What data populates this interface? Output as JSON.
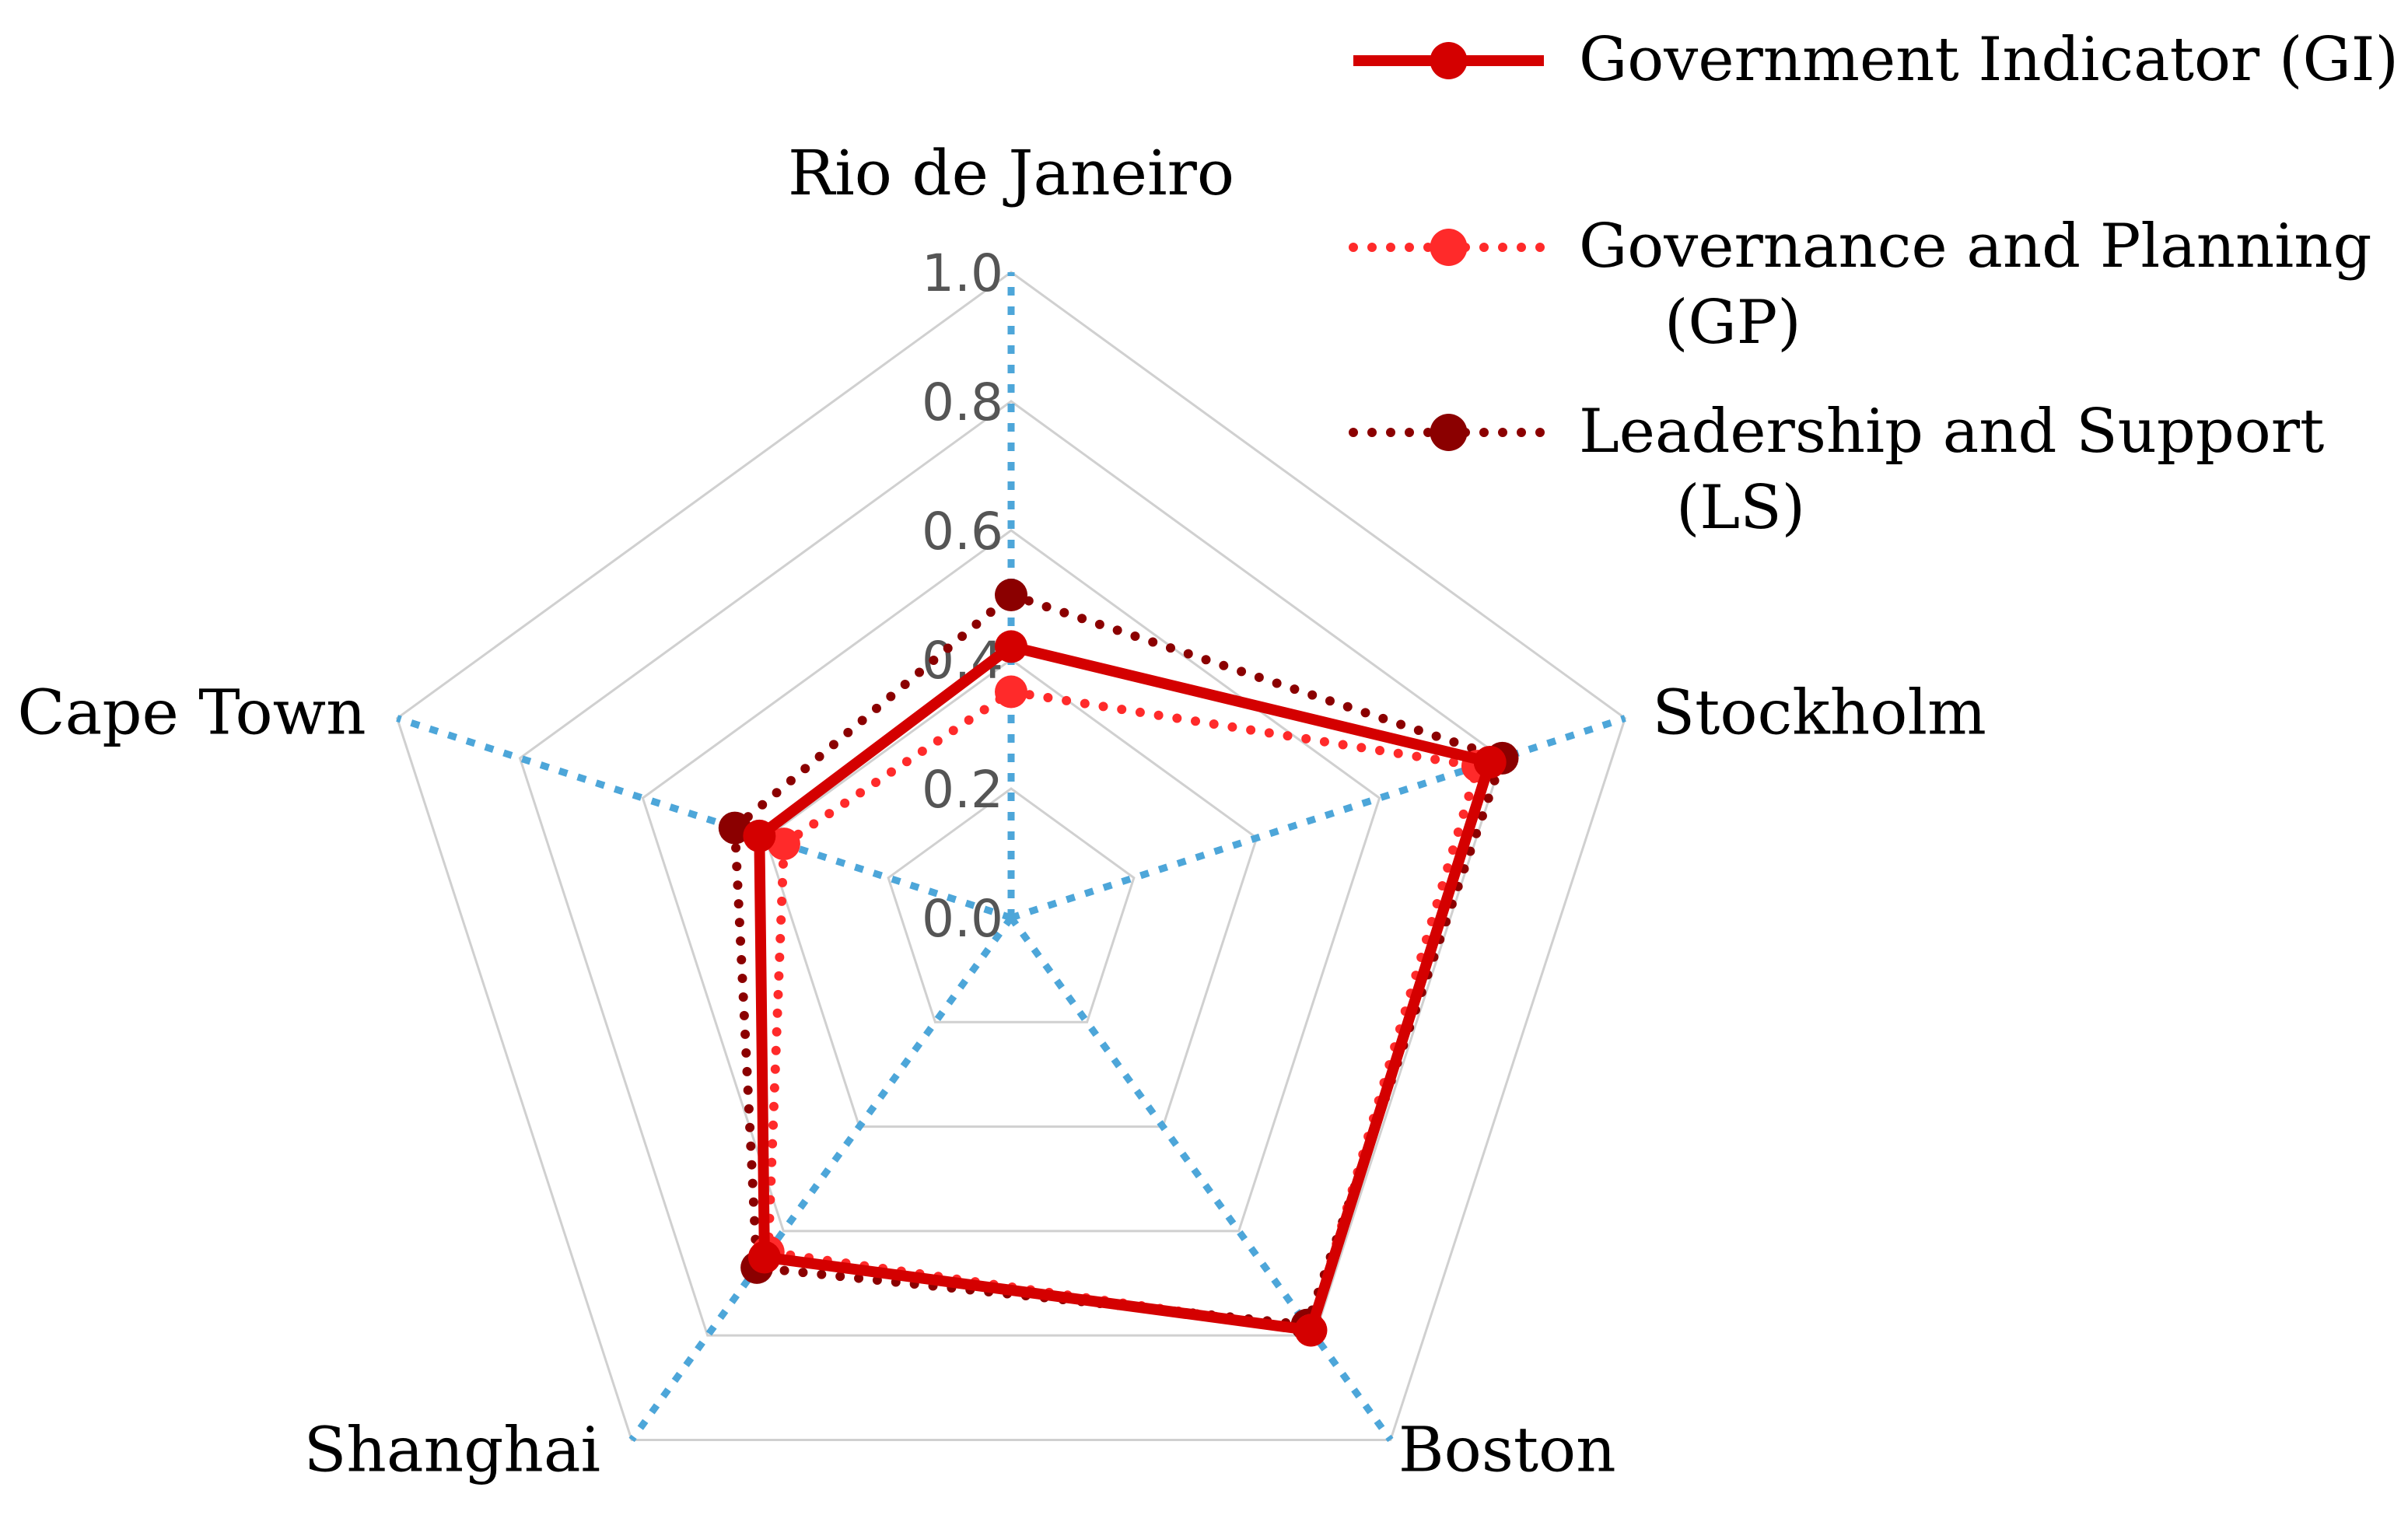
{
  "chart_data": {
    "type": "radar",
    "title": "",
    "categories": [
      "Rio de Janeiro",
      "Stockholm",
      "Boston",
      "Shanghai",
      "Cape Town"
    ],
    "rlim": [
      0,
      1.0
    ],
    "ticks": [
      "0.0",
      "0.2",
      "0.4",
      "0.6",
      "0.8",
      "1.0"
    ],
    "tick_values": [
      0,
      0.2,
      0.4,
      0.6,
      0.8,
      1.0
    ],
    "grid": true,
    "legend": "top-right",
    "series": [
      {
        "name": "Government Indicator (GI)",
        "name_lines": [
          "Government Indicator (GI)"
        ],
        "values": [
          0.42,
          0.78,
          0.79,
          0.65,
          0.41
        ],
        "color": "#d40000",
        "style": "solid"
      },
      {
        "name": "Governance and Planning (GP)",
        "name_lines": [
          "Governance and Planning",
          "(GP)"
        ],
        "values": [
          0.35,
          0.76,
          0.79,
          0.64,
          0.37
        ],
        "color": "#ff2a2a",
        "style": "dotted"
      },
      {
        "name": "Leadership and Support (LS)",
        "name_lines": [
          "Leadership and Support",
          "(LS)"
        ],
        "values": [
          0.5,
          0.8,
          0.78,
          0.67,
          0.45
        ],
        "color": "#8b0000",
        "style": "dotted"
      }
    ],
    "colors": {
      "grid": "#d0d0d0",
      "spokes": "#4da6d9"
    }
  }
}
